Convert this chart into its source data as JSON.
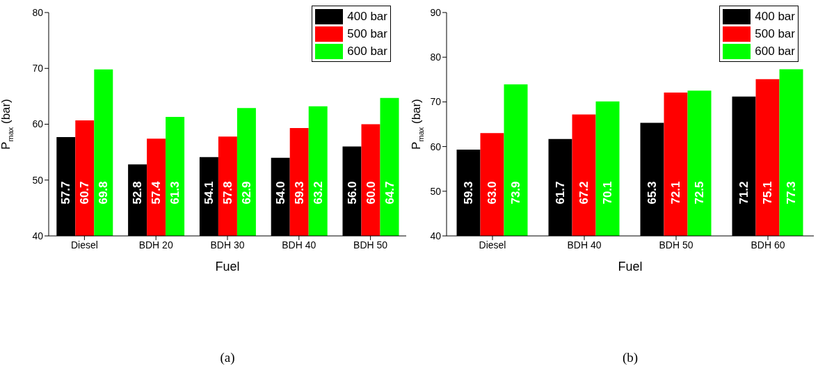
{
  "chart_data": [
    {
      "type": "bar",
      "xlabel": "Fuel",
      "ylabel": "P$_{max}$ (bar)",
      "categories": [
        "Diesel",
        "BDH 20",
        "BDH 30",
        "BDH 40",
        "BDH 50"
      ],
      "ylim": [
        40,
        80
      ],
      "yticks": [
        40,
        50,
        60,
        70,
        80
      ],
      "legend": "top right",
      "annotations": [
        "(a)"
      ],
      "series": [
        {
          "name": "400 bar",
          "color": "#000000",
          "values": [
            57.7,
            52.8,
            54.1,
            54.0,
            56.0
          ],
          "value_labels": [
            "57.7",
            "52.8",
            "54.1",
            "54.0",
            "56.0"
          ]
        },
        {
          "name": "500 bar",
          "color": "#ff0000",
          "values": [
            60.7,
            57.4,
            57.8,
            59.3,
            60.0
          ],
          "value_labels": [
            "60.7",
            "57.4",
            "57.8",
            "59.3",
            "60.0"
          ]
        },
        {
          "name": "600 bar",
          "color": "#00ff00",
          "values": [
            69.8,
            61.3,
            62.9,
            63.2,
            64.7
          ],
          "value_labels": [
            "69.8",
            "61.3",
            "62.9",
            "63.2",
            "64.7"
          ]
        }
      ]
    },
    {
      "type": "bar",
      "xlabel": "Fuel",
      "ylabel": "P$_{max}$ (bar)",
      "categories": [
        "Diesel",
        "BDH 40",
        "BDH 50",
        "BDH 60"
      ],
      "ylim": [
        40,
        90
      ],
      "yticks": [
        40,
        50,
        60,
        70,
        80,
        90
      ],
      "legend": "top right",
      "annotations": [
        "(b)"
      ],
      "series": [
        {
          "name": "400 bar",
          "color": "#000000",
          "values": [
            59.3,
            61.7,
            65.3,
            71.2
          ],
          "value_labels": [
            "59.3",
            "61.7",
            "65.3",
            "71.2"
          ]
        },
        {
          "name": "500 bar",
          "color": "#ff0000",
          "values": [
            63.0,
            67.2,
            72.1,
            75.1
          ],
          "value_labels": [
            "63.0",
            "67.2",
            "72.1",
            "75.1"
          ]
        },
        {
          "name": "600 bar",
          "color": "#00ff00",
          "values": [
            73.9,
            70.1,
            72.5,
            77.3
          ],
          "value_labels": [
            "73.9",
            "70.1",
            "72.5",
            "77.3"
          ]
        }
      ]
    }
  ]
}
